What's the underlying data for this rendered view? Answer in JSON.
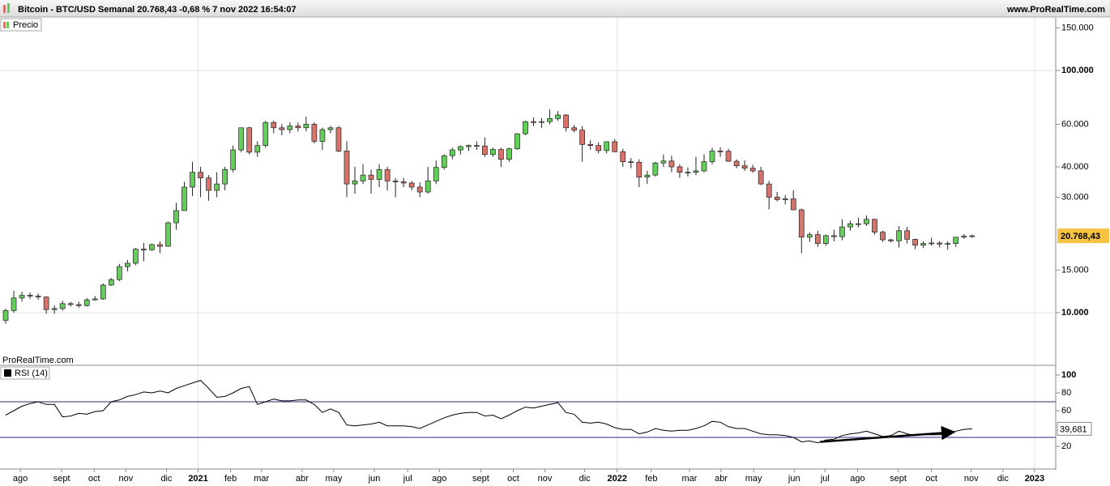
{
  "header": {
    "title": "Bitcoin - BTC/USD Semanal 20.768,43 -0,68 % 7 nov 2022 16:54:07",
    "site": "www.ProRealTime.com"
  },
  "chart_data": [
    {
      "type": "candlestick",
      "legend": "Precio",
      "watermark": "ProRealTime.com",
      "log_scale": true,
      "grid": true,
      "ylim": [
        6110,
        165000
      ],
      "yticks": [
        {
          "value": 150000,
          "label": "150.000"
        },
        {
          "value": 100000,
          "label": "100.000"
        },
        {
          "value": 60000,
          "label": "60.000"
        },
        {
          "value": 40000,
          "label": "40.000"
        },
        {
          "value": 30000,
          "label": "30.000"
        },
        {
          "value": 15000,
          "label": "15.000"
        },
        {
          "value": 10000,
          "label": "10.000"
        }
      ],
      "xlim": [
        -0.7,
        129.3
      ],
      "xticks": [
        {
          "value": 1.8,
          "label": "ago"
        },
        {
          "value": 6.9,
          "label": "sept"
        },
        {
          "value": 10.9,
          "label": "oct"
        },
        {
          "value": 14.8,
          "label": "nov"
        },
        {
          "value": 19.8,
          "label": "dic"
        },
        {
          "value": 23.7,
          "label": "2021"
        },
        {
          "value": 27.7,
          "label": "feb"
        },
        {
          "value": 31.5,
          "label": "mar"
        },
        {
          "value": 36.5,
          "label": "abr"
        },
        {
          "value": 40.4,
          "label": "may"
        },
        {
          "value": 45.4,
          "label": "jun"
        },
        {
          "value": 49.5,
          "label": "jul"
        },
        {
          "value": 53.4,
          "label": "ago"
        },
        {
          "value": 58.5,
          "label": "sept"
        },
        {
          "value": 62.5,
          "label": "oct"
        },
        {
          "value": 66.4,
          "label": "nov"
        },
        {
          "value": 71.3,
          "label": "dic"
        },
        {
          "value": 75.3,
          "label": "2022"
        },
        {
          "value": 79.5,
          "label": "feb"
        },
        {
          "value": 84.2,
          "label": "mar"
        },
        {
          "value": 88.1,
          "label": "abr"
        },
        {
          "value": 92.1,
          "label": "may"
        },
        {
          "value": 97.1,
          "label": "jun"
        },
        {
          "value": 100.9,
          "label": "jul"
        },
        {
          "value": 104.9,
          "label": "ago"
        },
        {
          "value": 109.9,
          "label": "sept"
        },
        {
          "value": 114.0,
          "label": "oct"
        },
        {
          "value": 118.9,
          "label": "nov"
        },
        {
          "value": 122.8,
          "label": "dic"
        },
        {
          "value": 126.7,
          "label": "2023"
        }
      ],
      "up_color": "#63cf5a",
      "down_color": "#d8736b",
      "last_value": 20768.43,
      "last_label": "20.768,43",
      "candles": [
        [
          9300,
          10400,
          9000,
          10200
        ],
        [
          10200,
          12300,
          10000,
          11500
        ],
        [
          11500,
          12200,
          11100,
          11800
        ],
        [
          11800,
          12100,
          11400,
          11700
        ],
        [
          11700,
          12000,
          11300,
          11600
        ],
        [
          11600,
          11700,
          9900,
          10300
        ],
        [
          10300,
          10700,
          9900,
          10400
        ],
        [
          10400,
          11200,
          10200,
          10900
        ],
        [
          10900,
          11100,
          10600,
          10800
        ],
        [
          10800,
          11100,
          10500,
          10700
        ],
        [
          10700,
          11500,
          10600,
          11300
        ],
        [
          11300,
          11700,
          11200,
          11400
        ],
        [
          11400,
          13200,
          11300,
          13000
        ],
        [
          13000,
          13900,
          12900,
          13700
        ],
        [
          13700,
          15900,
          13500,
          15500
        ],
        [
          15500,
          16500,
          14800,
          16000
        ],
        [
          16000,
          18500,
          15700,
          18300
        ],
        [
          18300,
          19400,
          16300,
          18200
        ],
        [
          18200,
          19300,
          18000,
          19100
        ],
        [
          19100,
          19700,
          17600,
          18800
        ],
        [
          18800,
          23800,
          18700,
          23500
        ],
        [
          23500,
          28400,
          22000,
          26400
        ],
        [
          26400,
          34700,
          26300,
          33000
        ],
        [
          33000,
          42000,
          30300,
          38000
        ],
        [
          38000,
          40000,
          30000,
          36000
        ],
        [
          36000,
          37000,
          29000,
          32000
        ],
        [
          32000,
          38000,
          30000,
          34000
        ],
        [
          34000,
          40000,
          32000,
          39000
        ],
        [
          39000,
          49000,
          38000,
          47000
        ],
        [
          47000,
          58000,
          46000,
          58000
        ],
        [
          58000,
          58500,
          45000,
          46000
        ],
        [
          46000,
          51000,
          44000,
          49000
        ],
        [
          49000,
          62000,
          48000,
          61000
        ],
        [
          61000,
          62000,
          55000,
          58000
        ],
        [
          58000,
          60000,
          54000,
          57000
        ],
        [
          57000,
          61000,
          55000,
          59000
        ],
        [
          59000,
          61000,
          56000,
          58000
        ],
        [
          58000,
          64500,
          56000,
          60000
        ],
        [
          60000,
          61000,
          50000,
          51000
        ],
        [
          51000,
          58000,
          47000,
          57000
        ],
        [
          57000,
          59000,
          55000,
          58000
        ],
        [
          58000,
          59000,
          46000,
          46500
        ],
        [
          46500,
          51000,
          30000,
          34000
        ],
        [
          34000,
          40000,
          31000,
          35000
        ],
        [
          35000,
          41000,
          34000,
          37000
        ],
        [
          37000,
          39000,
          31000,
          35500
        ],
        [
          35500,
          41000,
          33000,
          39000
        ],
        [
          39000,
          40000,
          32000,
          35000
        ],
        [
          35000,
          36000,
          30000,
          34700
        ],
        [
          34700,
          36000,
          33000,
          34300
        ],
        [
          34300,
          35000,
          32000,
          33000
        ],
        [
          33000,
          34500,
          30000,
          31500
        ],
        [
          31500,
          40000,
          31000,
          35000
        ],
        [
          35000,
          42500,
          34000,
          39800
        ],
        [
          39800,
          45000,
          39000,
          44500
        ],
        [
          44500,
          48000,
          43000,
          47000
        ],
        [
          47000,
          49000,
          45000,
          48500
        ],
        [
          48500,
          49500,
          46500,
          49000
        ],
        [
          49000,
          51000,
          47000,
          48800
        ],
        [
          48800,
          52900,
          44000,
          45000
        ],
        [
          45000,
          48000,
          44000,
          47200
        ],
        [
          47200,
          48000,
          40000,
          43000
        ],
        [
          43000,
          48000,
          42000,
          47500
        ],
        [
          47500,
          55000,
          47000,
          54800
        ],
        [
          54800,
          62000,
          54000,
          61500
        ],
        [
          61500,
          64000,
          59000,
          61000
        ],
        [
          61000,
          63500,
          58000,
          61500
        ],
        [
          61500,
          69000,
          60000,
          63300
        ],
        [
          63300,
          68000,
          62000,
          65500
        ],
        [
          65500,
          66000,
          56000,
          58000
        ],
        [
          58000,
          59500,
          55500,
          56700
        ],
        [
          56700,
          59000,
          42000,
          49500
        ],
        [
          49500,
          51500,
          47000,
          49000
        ],
        [
          49000,
          50500,
          45500,
          46700
        ],
        [
          46700,
          51000,
          45500,
          50800
        ],
        [
          50800,
          52000,
          46000,
          46200
        ],
        [
          46200,
          47500,
          40000,
          42000
        ],
        [
          42000,
          43500,
          39500,
          41800
        ],
        [
          41800,
          43000,
          33000,
          36300
        ],
        [
          36300,
          38500,
          34000,
          37000
        ],
        [
          37000,
          42000,
          36500,
          41500
        ],
        [
          41500,
          45000,
          40000,
          42300
        ],
        [
          42300,
          44500,
          38000,
          40000
        ],
        [
          40000,
          41000,
          36000,
          38000
        ],
        [
          38000,
          39800,
          36500,
          38000
        ],
        [
          38000,
          44000,
          37000,
          38500
        ],
        [
          38500,
          45000,
          38000,
          42000
        ],
        [
          42000,
          48000,
          41000,
          46500
        ],
        [
          46500,
          48200,
          44000,
          46400
        ],
        [
          46400,
          47500,
          42000,
          42200
        ],
        [
          42200,
          42900,
          39500,
          40400
        ],
        [
          40400,
          42500,
          38500,
          39500
        ],
        [
          39500,
          40800,
          37800,
          38500
        ],
        [
          38500,
          40000,
          33700,
          34000
        ],
        [
          34000,
          35000,
          26700,
          30000
        ],
        [
          30000,
          31500,
          28800,
          29300
        ],
        [
          29300,
          30600,
          28000,
          29500
        ],
        [
          29500,
          32000,
          26500,
          26600
        ],
        [
          26600,
          26900,
          17600,
          20500
        ],
        [
          20500,
          21500,
          19600,
          21000
        ],
        [
          21000,
          21800,
          18700,
          19300
        ],
        [
          19300,
          21000,
          18900,
          20800
        ],
        [
          20800,
          22000,
          19700,
          20600
        ],
        [
          20600,
          24300,
          19900,
          22600
        ],
        [
          22600,
          24000,
          21800,
          23300
        ],
        [
          23300,
          24700,
          22500,
          23300
        ],
        [
          23300,
          25200,
          22800,
          24300
        ],
        [
          24300,
          24400,
          21000,
          21500
        ],
        [
          21500,
          21800,
          19600,
          20000
        ],
        [
          20000,
          20200,
          19500,
          19800
        ],
        [
          19800,
          22800,
          18600,
          21800
        ],
        [
          21800,
          22600,
          19300,
          20100
        ],
        [
          20100,
          20200,
          18300,
          19000
        ],
        [
          19000,
          19700,
          18500,
          19300
        ],
        [
          19300,
          20400,
          18900,
          19400
        ],
        [
          19400,
          19700,
          18600,
          19200
        ],
        [
          19200,
          19700,
          18200,
          19300
        ],
        [
          19300,
          20400,
          18700,
          20500
        ],
        [
          20500,
          21100,
          20200,
          20700
        ],
        [
          20700,
          21000,
          20400,
          20768.43
        ]
      ]
    },
    {
      "type": "line",
      "legend": "RSI (14)",
      "color": "#000000",
      "level_color": "#2a2a7a",
      "ylim": [
        -4.5,
        110
      ],
      "yticks": [
        100,
        80,
        60,
        20
      ],
      "levels": [
        70,
        30
      ],
      "last_value": 39.681,
      "last_label": "39,681",
      "annotation_arrow": {
        "x": [
          100.3,
          116.8
        ],
        "y": [
          25,
          36
        ]
      },
      "values": [
        55,
        60,
        65,
        68,
        70,
        67,
        67,
        53,
        54,
        57,
        56,
        59,
        60,
        70,
        72,
        76,
        78,
        81,
        80,
        82,
        80,
        85,
        88,
        91,
        94,
        85,
        75,
        76,
        80,
        85,
        87,
        67,
        70,
        73,
        71,
        71,
        72,
        72,
        67,
        58,
        62,
        58,
        44,
        43,
        44,
        45,
        47,
        43,
        43,
        43,
        42,
        40,
        44,
        48,
        52,
        55,
        57,
        58,
        58,
        54,
        55,
        51,
        55,
        60,
        64,
        63,
        65,
        67,
        69,
        58,
        56,
        47,
        46,
        47,
        45,
        41,
        39,
        39,
        34,
        36,
        40,
        38,
        37,
        38,
        38,
        40,
        43,
        48,
        47,
        42,
        40,
        40,
        37,
        34,
        33,
        33,
        32,
        30,
        25,
        26,
        24,
        27,
        28,
        32,
        34,
        35,
        37,
        34,
        31,
        32,
        37,
        34,
        32,
        33,
        33,
        33,
        34,
        37,
        39,
        39.681
      ]
    }
  ]
}
